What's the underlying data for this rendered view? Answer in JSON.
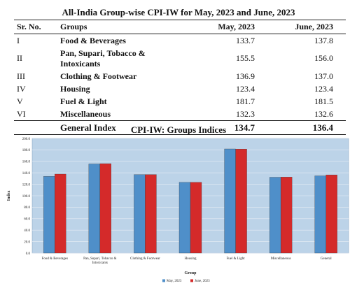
{
  "table": {
    "title": "All-India Group-wise CPI-IW for May, 2023 and June, 2023",
    "headers": {
      "sr": "Sr. No.",
      "group": "Groups",
      "may": "May, 2023",
      "june": "June, 2023"
    },
    "rows": [
      {
        "sr": "I",
        "group": "Food & Beverages",
        "may": "133.7",
        "june": "137.8"
      },
      {
        "sr": "II",
        "group": "Pan, Supari, Tobacco & Intoxicants",
        "may": "155.5",
        "june": "156.0"
      },
      {
        "sr": "III",
        "group": "Clothing & Footwear",
        "may": "136.9",
        "june": "137.0"
      },
      {
        "sr": "IV",
        "group": "Housing",
        "may": "123.4",
        "june": "123.4"
      },
      {
        "sr": "V",
        "group": "Fuel & Light",
        "may": "181.7",
        "june": "181.5"
      },
      {
        "sr": "VI",
        "group": "Miscellaneous",
        "may": "132.3",
        "june": "132.6"
      }
    ],
    "total": {
      "group": "General Index",
      "may": "134.7",
      "june": "136.4"
    }
  },
  "chart_data": {
    "type": "bar",
    "title": "CPI-IW: Groups Indices",
    "xlabel": "Group",
    "ylabel": "Index",
    "ylim": [
      0,
      200
    ],
    "yticks": [
      "0.0",
      "20.0",
      "40.0",
      "60.0",
      "80.0",
      "100.0",
      "120.0",
      "140.0",
      "160.0",
      "180.0",
      "200.0"
    ],
    "categories": [
      "Food & Beverages",
      "Pan, Supari, Tobacco & Intoxicants",
      "Clothing & Footwear",
      "Housing",
      "Fuel & Light",
      "Miscellaneous",
      "General"
    ],
    "category_lines": [
      [
        "Food & Beverages"
      ],
      [
        "Pan, Supari, Tobacco &",
        "Intoxicants"
      ],
      [
        "Clothing & Footwear"
      ],
      [
        "Housing"
      ],
      [
        "Fuel & Light"
      ],
      [
        "Miscellaneous"
      ],
      [
        "General"
      ]
    ],
    "series": [
      {
        "name": "May, 2023",
        "values": [
          133.7,
          155.5,
          136.9,
          123.4,
          181.7,
          132.3,
          134.7
        ],
        "color": "#4f8fc9"
      },
      {
        "name": "June, 2023",
        "values": [
          137.8,
          156.0,
          137.0,
          123.4,
          181.5,
          132.6,
          136.4
        ],
        "color": "#d42a2a"
      }
    ],
    "grid": true,
    "legend": "bottom-center",
    "plot_background": "#bcd3e8"
  }
}
